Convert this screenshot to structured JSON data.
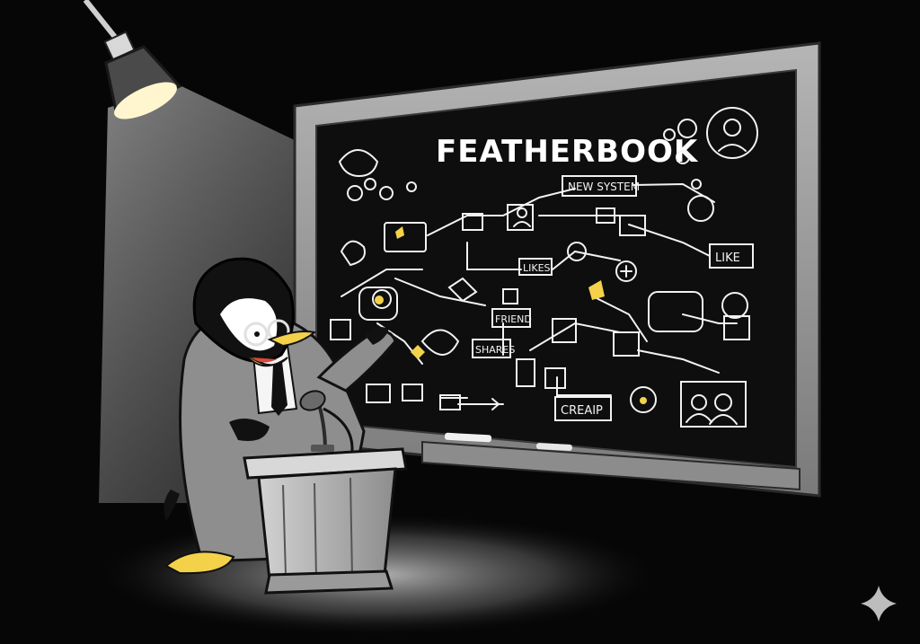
{
  "board": {
    "title": "FEATHERBOOK",
    "labels": {
      "new_system": "NEW SYSTEM",
      "likes": "LIKES",
      "like": "LIKE",
      "friend": "FRIEND",
      "shares": "SHARES",
      "creaip": "CREAIP"
    }
  },
  "colors": {
    "chalk": "#f2f2f2",
    "accent": "#f3d24a",
    "board": "#111111",
    "frame": "#9a9a9a"
  }
}
